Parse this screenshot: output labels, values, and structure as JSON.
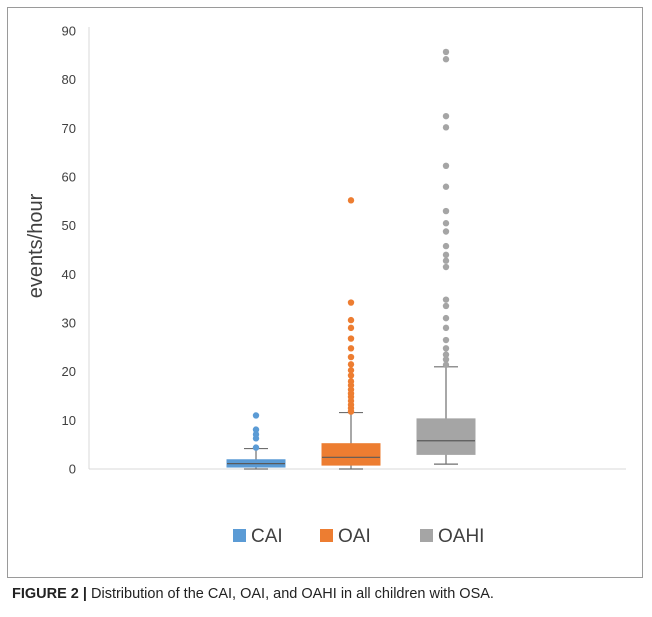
{
  "figure": {
    "caption_label": "FIGURE 2 |",
    "caption_text": " Distribution of the CAI, OAI, and OAHI in all children with OSA."
  },
  "chart_data": {
    "type": "box",
    "ylabel": "events/hour",
    "ylim": [
      0,
      90
    ],
    "yticks": [
      0,
      10,
      20,
      30,
      40,
      50,
      60,
      70,
      80,
      90
    ],
    "grid": false,
    "legend_position": "bottom",
    "series": [
      {
        "name": "CAI",
        "color": "#5b9bd5",
        "whisker_low": 0,
        "q1": 0.4,
        "median": 1.1,
        "q3": 1.9,
        "whisker_high": 4.2,
        "outliers": [
          4.4,
          6.3,
          7.1,
          8.1,
          11.0
        ]
      },
      {
        "name": "OAI",
        "color": "#ed7d31",
        "whisker_low": 0,
        "q1": 0.8,
        "median": 2.4,
        "q3": 5.2,
        "whisker_high": 11.6,
        "outliers": [
          11.8,
          12.5,
          13.2,
          14.0,
          14.8,
          15.5,
          16.3,
          17.2,
          18.0,
          19.2,
          20.3,
          21.5,
          23.0,
          24.8,
          26.8,
          29.0,
          30.6,
          34.2,
          55.2
        ]
      },
      {
        "name": "OAHI",
        "color": "#a5a5a5",
        "whisker_low": 1.0,
        "q1": 3.0,
        "median": 5.8,
        "q3": 10.3,
        "whisker_high": 21.0,
        "outliers": [
          21.4,
          22.5,
          23.5,
          24.8,
          26.5,
          29.0,
          31.0,
          33.5,
          34.8,
          41.5,
          42.8,
          44.0,
          45.8,
          48.8,
          50.5,
          53.0,
          58.0,
          62.3,
          70.2,
          72.5,
          84.2,
          85.7
        ]
      }
    ]
  }
}
